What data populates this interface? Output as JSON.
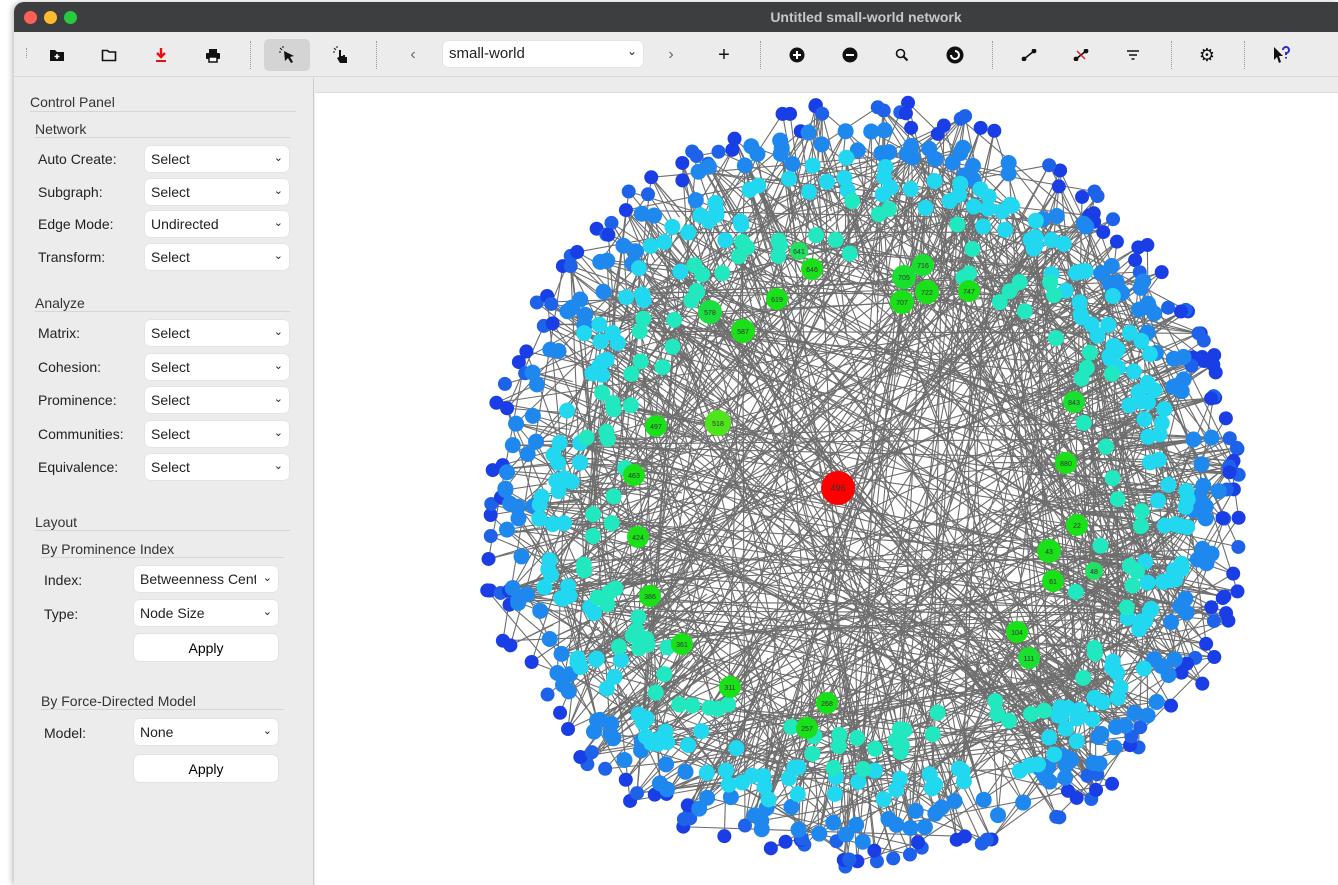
{
  "window": {
    "title": "Untitled small-world network"
  },
  "toolbar": {
    "icons": [
      "new-file-icon",
      "open-folder-icon",
      "download-icon",
      "print-icon",
      "select-pointer-icon",
      "hand-pointer-icon",
      "chevron-left-icon",
      "chevron-right-icon",
      "plus-icon",
      "zoom-in-icon",
      "zoom-out-icon",
      "search-icon",
      "rotate-icon",
      "add-edge-icon",
      "remove-edge-icon",
      "filter-icon",
      "gear-icon",
      "help-pointer-icon"
    ],
    "network_select": "small-world"
  },
  "panel": {
    "title": "Control Panel",
    "network": {
      "title": "Network",
      "rows": [
        {
          "label": "Auto Create:",
          "value": "Select"
        },
        {
          "label": "Subgraph:",
          "value": "Select"
        },
        {
          "label": "Edge Mode:",
          "value": "Undirected"
        },
        {
          "label": "Transform:",
          "value": "Select"
        }
      ]
    },
    "analyze": {
      "title": "Analyze",
      "rows": [
        {
          "label": "Matrix:",
          "value": "Select"
        },
        {
          "label": "Cohesion:",
          "value": "Select"
        },
        {
          "label": "Prominence:",
          "value": "Select"
        },
        {
          "label": "Communities:",
          "value": "Select"
        },
        {
          "label": "Equivalence:",
          "value": "Select"
        }
      ]
    },
    "layout": {
      "title": "Layout",
      "prominence": {
        "title": "By Prominence Index",
        "index_label": "Index:",
        "index_value": "Betweenness Centrality",
        "type_label": "Type:",
        "type_value": "Node Size",
        "apply": "Apply"
      },
      "force": {
        "title": "By Force-Directed Model",
        "model_label": "Model:",
        "model_value": "None",
        "apply": "Apply"
      }
    }
  },
  "graph": {
    "edge_color": "#6e6e6e",
    "colors": {
      "center": "#ff0000",
      "green": "#19e619",
      "teal": "#22e8c0",
      "cyan": "#22d8f0",
      "blue": "#1e88ee",
      "dark_blue": "#1a3ee6"
    },
    "key_nodes": [
      {
        "label": "496",
        "color": "#ff0000"
      },
      {
        "label": "518",
        "color": "#4ee61a"
      },
      {
        "label": "497",
        "color": "#19e019"
      },
      {
        "label": "463",
        "color": "#19e019"
      },
      {
        "label": "424",
        "color": "#19e019"
      },
      {
        "label": "386",
        "color": "#19e019"
      },
      {
        "label": "361",
        "color": "#19e019"
      },
      {
        "label": "311",
        "color": "#19e019"
      },
      {
        "label": "268",
        "color": "#19e019"
      },
      {
        "label": "257",
        "color": "#19e019"
      },
      {
        "label": "578",
        "color": "#19e040"
      },
      {
        "label": "587",
        "color": "#19e019"
      },
      {
        "label": "619",
        "color": "#19e019"
      },
      {
        "label": "646",
        "color": "#19e019"
      },
      {
        "label": "641",
        "color": "#22e060"
      },
      {
        "label": "705",
        "color": "#19e030"
      },
      {
        "label": "716",
        "color": "#19e030"
      },
      {
        "label": "707",
        "color": "#19e019"
      },
      {
        "label": "722",
        "color": "#19e019"
      },
      {
        "label": "747",
        "color": "#19e019"
      },
      {
        "label": "843",
        "color": "#19e030"
      },
      {
        "label": "880",
        "color": "#19e019"
      },
      {
        "label": "22",
        "color": "#19e019"
      },
      {
        "label": "43",
        "color": "#19e019"
      },
      {
        "label": "61",
        "color": "#19e019"
      },
      {
        "label": "48",
        "color": "#22e060"
      },
      {
        "label": "104",
        "color": "#19e019"
      },
      {
        "label": "111",
        "color": "#19e030"
      }
    ]
  }
}
